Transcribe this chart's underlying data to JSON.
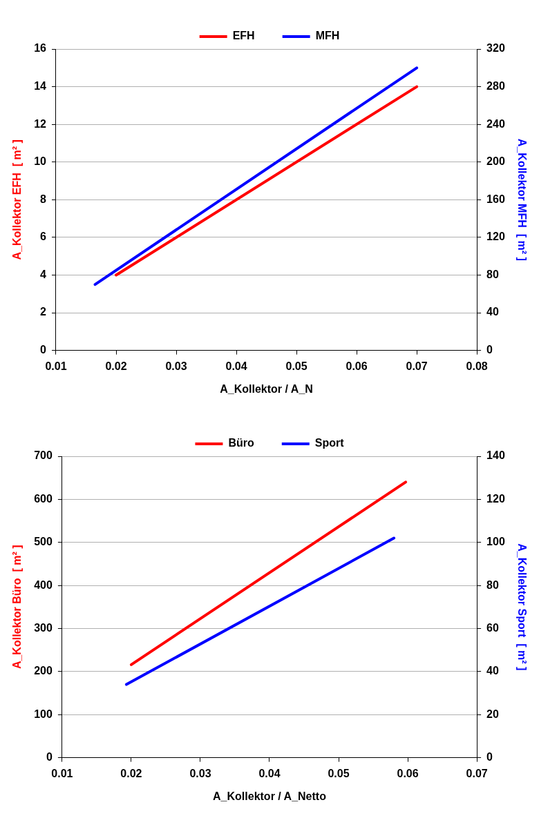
{
  "chart_data": [
    {
      "type": "line",
      "xlabel": "A_Kollektor / A_N",
      "ylabel": "A_Kollektor EFH  [ m² ]",
      "y2label": "A_Kollektor MFH  [ m² ]",
      "xlim": [
        0.01,
        0.08
      ],
      "xticks": [
        0.01,
        0.02,
        0.03,
        0.04,
        0.05,
        0.06,
        0.07,
        0.08
      ],
      "ylim": [
        0,
        16
      ],
      "yticks": [
        0,
        2,
        4,
        6,
        8,
        10,
        12,
        14,
        16
      ],
      "y2lim": [
        0,
        320
      ],
      "y2ticks": [
        0,
        40,
        80,
        120,
        160,
        200,
        240,
        280,
        320
      ],
      "grid": "y",
      "legend": "top",
      "marker": "none",
      "line_style": "solid",
      "series": [
        {
          "name": "EFH",
          "color": "#ff0000",
          "x": [
            0.02,
            0.07
          ],
          "values": [
            4,
            14
          ]
        },
        {
          "name": "MFH",
          "color": "#0000ff",
          "axis": "y2",
          "x": [
            0.0165,
            0.07
          ],
          "values": [
            70,
            300
          ]
        }
      ]
    },
    {
      "type": "line",
      "xlabel": "A_Kollektor / A_Netto",
      "ylabel": "A_Kollektor Büro  [ m² ]",
      "y2label": "A_Kollektor Sport  [ m² ]",
      "xlim": [
        0.01,
        0.07
      ],
      "xticks": [
        0.01,
        0.02,
        0.03,
        0.04,
        0.05,
        0.06,
        0.07
      ],
      "ylim": [
        0,
        700
      ],
      "yticks": [
        0,
        100,
        200,
        300,
        400,
        500,
        600,
        700
      ],
      "y2lim": [
        0,
        140
      ],
      "y2ticks": [
        0,
        20,
        40,
        60,
        80,
        100,
        120,
        140
      ],
      "grid": "y",
      "legend": "top",
      "marker": "none",
      "line_style": "solid",
      "series": [
        {
          "name": "Büro",
          "color": "#ff0000",
          "x": [
            0.02,
            0.0597
          ],
          "values": [
            216,
            640
          ]
        },
        {
          "name": "Sport",
          "color": "#0000ff",
          "axis": "y2",
          "x": [
            0.0193,
            0.058
          ],
          "values": [
            34,
            102
          ]
        }
      ]
    }
  ]
}
